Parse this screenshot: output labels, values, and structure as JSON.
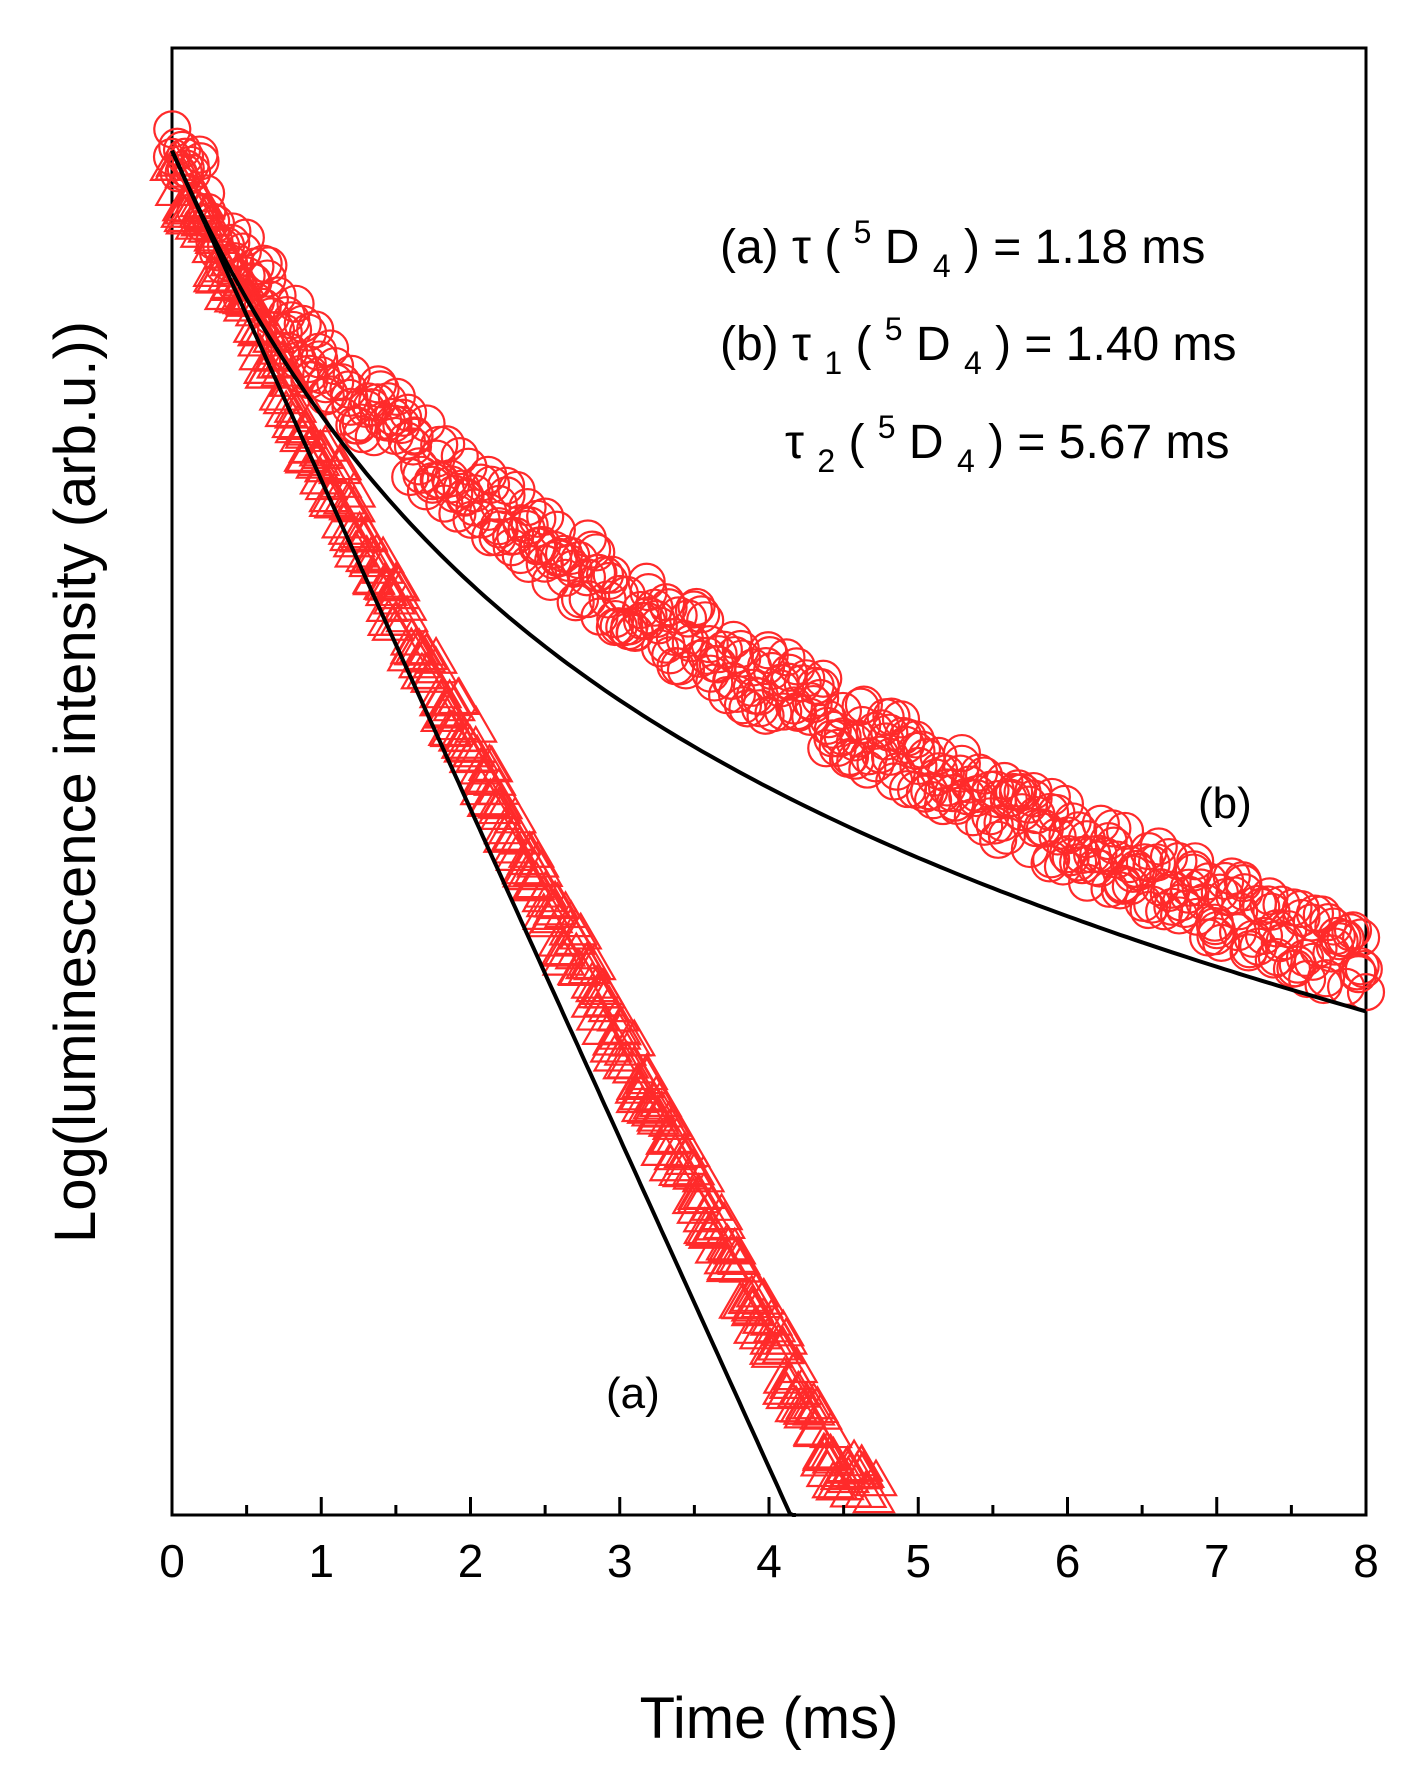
{
  "chart_data": {
    "type": "scatter",
    "title": "",
    "xlabel": "Time (ms)",
    "ylabel": "Log(luminescence intensity (arb.u.))",
    "xlim": [
      0,
      8
    ],
    "ylim": [
      0,
      1
    ],
    "x_ticks": [
      "0",
      "1",
      "2",
      "3",
      "4",
      "5",
      "6",
      "7",
      "8"
    ],
    "y_ticks": [],
    "grid": false,
    "annotations": {
      "a": {
        "label": "(a)",
        "symbol": "τ",
        "state_sup": "5",
        "state_sub": "4",
        "rest": " = 1.18 ms"
      },
      "b1": {
        "label": "(b)",
        "symbol": "τ",
        "symbol_sub": "1",
        "state_sup": "5",
        "state_sub": "4",
        "rest": " = 1.40 ms"
      },
      "b2": {
        "symbol": "τ",
        "symbol_sub": "2",
        "state_sup": "5",
        "state_sub": "4",
        "rest": " = 5.67 ms"
      }
    },
    "series_labels": {
      "a": "(a)",
      "b": "(b)"
    },
    "series": [
      {
        "name": "(a)",
        "marker": "triangle-open",
        "color": "#ff2a2a",
        "fit": {
          "type": "single-exponential",
          "tau_ms": 1.18
        },
        "x": [
          0.0,
          0.1,
          0.2,
          0.3,
          0.4,
          0.5,
          0.6,
          0.7,
          0.8,
          0.9,
          1.0,
          1.1,
          1.2,
          1.3,
          1.4,
          1.5,
          1.6,
          1.7,
          1.8,
          1.9,
          2.0,
          2.1,
          2.2,
          2.3,
          2.4,
          2.5,
          2.6,
          2.7,
          2.8,
          2.9,
          3.0,
          3.1,
          3.2,
          3.3,
          3.4,
          3.5,
          3.6,
          3.7,
          3.8,
          3.9,
          4.0,
          4.1,
          4.2,
          4.3,
          4.4,
          4.5,
          4.6,
          4.7
        ],
        "y": [
          0.915,
          0.895,
          0.875,
          0.855,
          0.835,
          0.815,
          0.796,
          0.776,
          0.756,
          0.736,
          0.716,
          0.697,
          0.677,
          0.657,
          0.637,
          0.617,
          0.597,
          0.577,
          0.557,
          0.538,
          0.518,
          0.498,
          0.478,
          0.458,
          0.438,
          0.418,
          0.398,
          0.379,
          0.359,
          0.339,
          0.319,
          0.299,
          0.279,
          0.259,
          0.239,
          0.219,
          0.2,
          0.18,
          0.16,
          0.14,
          0.12,
          0.1,
          0.08,
          0.06,
          0.04,
          0.03,
          0.02,
          0.01
        ]
      },
      {
        "name": "(b)",
        "marker": "circle-open",
        "color": "#ff2a2a",
        "fit": {
          "type": "bi-exponential",
          "tau1_ms": 1.4,
          "tau2_ms": 5.67
        },
        "x": [
          0.0,
          0.1,
          0.2,
          0.3,
          0.4,
          0.5,
          0.6,
          0.7,
          0.8,
          0.9,
          1.0,
          1.2,
          1.4,
          1.6,
          1.8,
          2.0,
          2.2,
          2.4,
          2.6,
          2.8,
          3.0,
          3.2,
          3.4,
          3.6,
          3.8,
          4.0,
          4.2,
          4.4,
          4.6,
          4.8,
          5.0,
          5.2,
          5.4,
          5.6,
          5.8,
          6.0,
          6.2,
          6.4,
          6.6,
          6.8,
          7.0,
          7.2,
          7.4,
          7.6,
          7.8,
          8.0
        ],
        "y": [
          0.945,
          0.918,
          0.9,
          0.878,
          0.862,
          0.848,
          0.835,
          0.822,
          0.81,
          0.798,
          0.788,
          0.767,
          0.748,
          0.73,
          0.713,
          0.697,
          0.683,
          0.669,
          0.654,
          0.641,
          0.628,
          0.615,
          0.602,
          0.59,
          0.578,
          0.567,
          0.556,
          0.544,
          0.534,
          0.522,
          0.512,
          0.501,
          0.491,
          0.481,
          0.471,
          0.461,
          0.452,
          0.443,
          0.433,
          0.424,
          0.416,
          0.407,
          0.398,
          0.39,
          0.381,
          0.373
        ]
      }
    ]
  }
}
